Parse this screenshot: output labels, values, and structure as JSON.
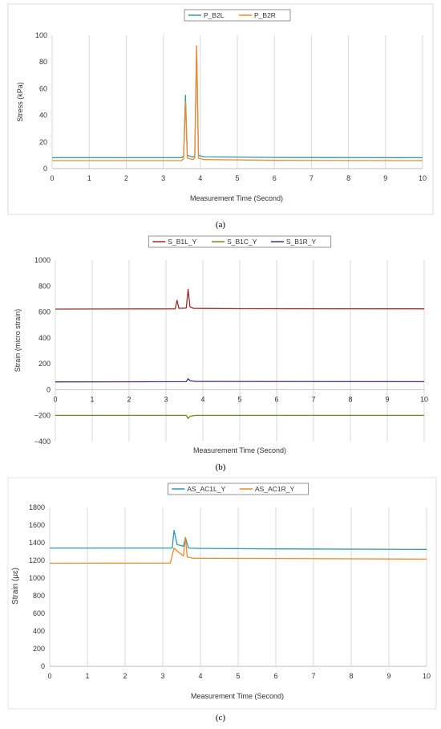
{
  "chart_data": [
    {
      "id": "a",
      "type": "line",
      "panel_label": "(a)",
      "xlabel": "Measurement Time (Second)",
      "ylabel": "Stress (kPa)",
      "xlim": [
        0,
        10
      ],
      "ylim": [
        0,
        100
      ],
      "xticks": [
        0,
        1,
        2,
        3,
        4,
        5,
        6,
        7,
        8,
        9,
        10
      ],
      "yticks": [
        0,
        20,
        40,
        60,
        80,
        100
      ],
      "grid": "vertical",
      "legend_position": "top-center",
      "series": [
        {
          "name": "P_B2L",
          "color": "#2a9bb0",
          "points": [
            [
              0,
              8.2
            ],
            [
              3.5,
              8.2
            ],
            [
              3.55,
              9.5
            ],
            [
              3.6,
              55
            ],
            [
              3.65,
              10
            ],
            [
              3.8,
              8.6
            ],
            [
              3.85,
              9.5
            ],
            [
              3.9,
              92
            ],
            [
              3.95,
              10
            ],
            [
              4.1,
              8.8
            ],
            [
              6,
              8.4
            ],
            [
              10,
              8.2
            ]
          ]
        },
        {
          "name": "P_B2R",
          "color": "#ef8a2a",
          "points": [
            [
              0,
              6
            ],
            [
              3.5,
              6
            ],
            [
              3.55,
              7.5
            ],
            [
              3.6,
              50
            ],
            [
              3.65,
              8
            ],
            [
              3.8,
              6.8
            ],
            [
              3.85,
              8
            ],
            [
              3.9,
              92
            ],
            [
              3.95,
              8
            ],
            [
              4.1,
              6.8
            ],
            [
              6,
              6.2
            ],
            [
              10,
              6
            ]
          ]
        }
      ]
    },
    {
      "id": "b",
      "type": "line",
      "panel_label": "(b)",
      "xlabel": "Measurement Time (Second)",
      "ylabel": "Strain (micro strain)",
      "xlim": [
        0,
        10
      ],
      "ylim": [
        -400,
        1000
      ],
      "xticks": [
        0,
        1,
        2,
        3,
        4,
        5,
        6,
        7,
        8,
        9,
        10
      ],
      "yticks": [
        -400,
        -200,
        0,
        200,
        400,
        600,
        800,
        1000
      ],
      "grid": "vertical",
      "legend_position": "top-center",
      "series": [
        {
          "name": "S_B1L_Y",
          "color": "#9b2d2d",
          "points": [
            [
              0,
              622
            ],
            [
              3.25,
              624
            ],
            [
              3.3,
              690
            ],
            [
              3.35,
              628
            ],
            [
              3.55,
              630
            ],
            [
              3.6,
              775
            ],
            [
              3.65,
              640
            ],
            [
              3.75,
              628
            ],
            [
              5,
              625
            ],
            [
              10,
              624
            ]
          ]
        },
        {
          "name": "S_B1C_Y",
          "color": "#6b8e23",
          "points": [
            [
              0,
              -198
            ],
            [
              3.55,
              -198
            ],
            [
              3.6,
              -222
            ],
            [
              3.65,
              -205
            ],
            [
              3.8,
              -198
            ],
            [
              10,
              -198
            ]
          ]
        },
        {
          "name": "S_B1R_Y",
          "color": "#4b2a7a",
          "points": [
            [
              0,
              60
            ],
            [
              3.55,
              62
            ],
            [
              3.6,
              85
            ],
            [
              3.65,
              70
            ],
            [
              3.8,
              64
            ],
            [
              10,
              62
            ]
          ]
        }
      ]
    },
    {
      "id": "c",
      "type": "line",
      "panel_label": "(c)",
      "xlabel": "Measurement Time (Second)",
      "ylabel": "Strain (μɛ)",
      "xlim": [
        0,
        10
      ],
      "ylim": [
        0,
        1800
      ],
      "xticks": [
        0,
        1,
        2,
        3,
        4,
        5,
        6,
        7,
        8,
        9,
        10
      ],
      "yticks": [
        0,
        200,
        400,
        600,
        800,
        1000,
        1200,
        1400,
        1600,
        1800
      ],
      "grid": "vertical",
      "legend_position": "top-center",
      "series": [
        {
          "name": "AS_AC1L_Y",
          "color": "#2a9bb0",
          "points": [
            [
              0,
              1340
            ],
            [
              3.25,
              1340
            ],
            [
              3.3,
              1540
            ],
            [
              3.38,
              1380
            ],
            [
              3.55,
              1360
            ],
            [
              3.6,
              1460
            ],
            [
              3.68,
              1340
            ],
            [
              4,
              1335
            ],
            [
              6,
              1330
            ],
            [
              10,
              1325
            ]
          ]
        },
        {
          "name": "AS_AC1R_Y",
          "color": "#ef8a2a",
          "points": [
            [
              0,
              1168
            ],
            [
              3.2,
              1170
            ],
            [
              3.3,
              1340
            ],
            [
              3.4,
              1300
            ],
            [
              3.55,
              1250
            ],
            [
              3.6,
              1460
            ],
            [
              3.65,
              1240
            ],
            [
              3.8,
              1225
            ],
            [
              6,
              1222
            ],
            [
              10,
              1215
            ]
          ]
        }
      ]
    }
  ]
}
